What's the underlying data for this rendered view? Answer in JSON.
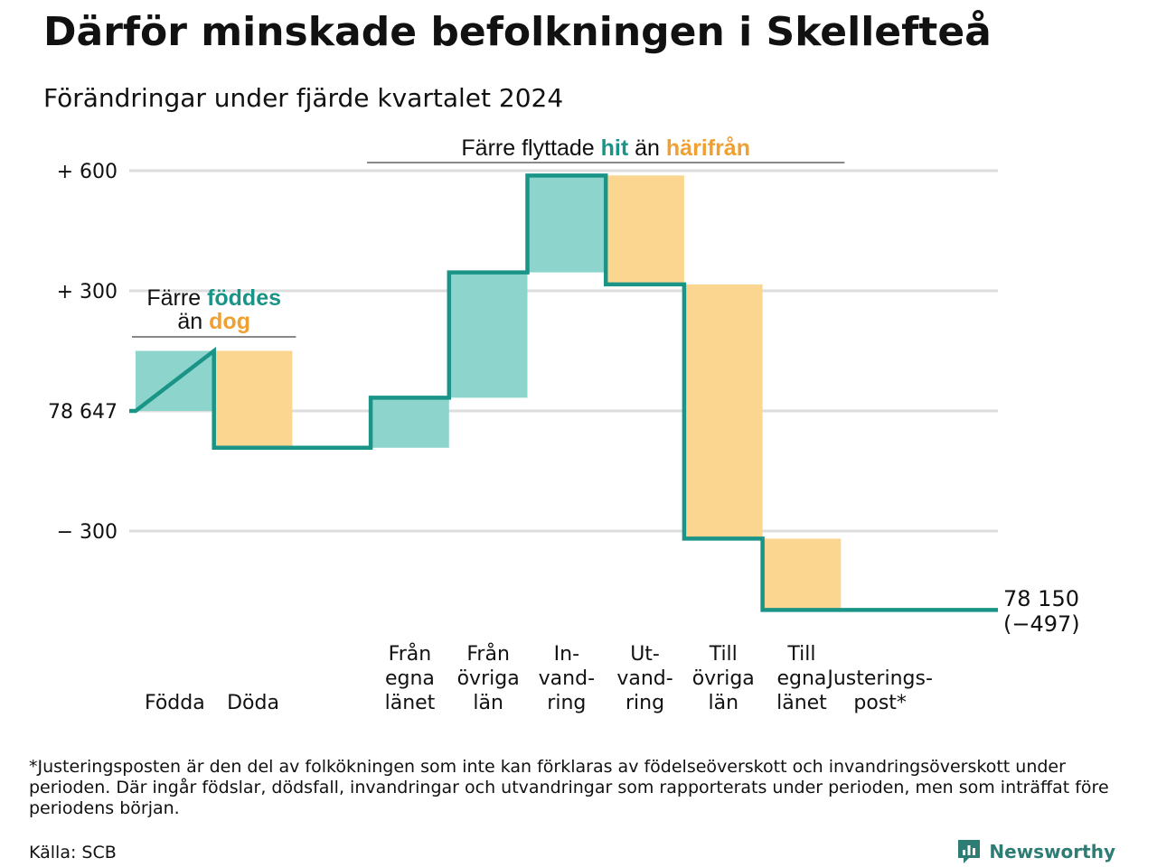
{
  "title": "Därför minskade befolkningen i Skellefteå",
  "subtitle": "Förändringar under fjärde kvartalet 2024",
  "footnote": "*Justeringsposten är den del av folkökningen som inte kan förklaras av födelseöverskott och invandringsöverskott under perioden. Där ingår födslar, dödsfall, invandringar och utvandringar som rapporterats under perioden, men som inträffat före periodens början.",
  "source": "Källa: SCB",
  "brand": "Newsworthy",
  "colors": {
    "increase": "#8dd5cc",
    "decrease": "#fad690",
    "line": "#1a9487",
    "grid": "#dddddd",
    "teal_text": "#1a9487",
    "orange_text": "#f0a030"
  },
  "annotations": {
    "births": {
      "line1": "Färre",
      "hl1": "föddes",
      "line2": "än",
      "hl2": "dog"
    },
    "migration": {
      "pre": "Färre flyttade",
      "hl1": "hit",
      "mid": "än",
      "hl2": "härifrån"
    }
  },
  "end_label": {
    "value": "78 150",
    "change": "(−497)"
  },
  "chart_data": {
    "type": "waterfall",
    "title": "Därför minskade befolkningen i Skellefteå",
    "subtitle": "Förändringar under fjärde kvartalet 2024",
    "start_value": 78647,
    "end_value": 78150,
    "total_change": -497,
    "y_ticks": [
      {
        "value": 600,
        "label": "+ 600"
      },
      {
        "value": 300,
        "label": "+ 300"
      },
      {
        "value": 0,
        "label": "78 647"
      },
      {
        "value": -300,
        "label": "− 300"
      }
    ],
    "ylim": [
      -480,
      640
    ],
    "grid": true,
    "steps": [
      {
        "label": [
          "Födda"
        ],
        "value": 150,
        "kind": "increase"
      },
      {
        "label": [
          "Döda"
        ],
        "value": -242,
        "kind": "decrease"
      },
      {
        "label": [],
        "value": 0,
        "kind": "blank"
      },
      {
        "label": [
          "Från",
          "egna",
          "länet"
        ],
        "value": 125,
        "kind": "increase"
      },
      {
        "label": [
          "Från",
          "övriga",
          "län"
        ],
        "value": 313,
        "kind": "increase"
      },
      {
        "label": [
          "In-",
          "vand-",
          "ring"
        ],
        "value": 242,
        "kind": "increase"
      },
      {
        "label": [
          "Ut-",
          "vand-",
          "ring"
        ],
        "value": -272,
        "kind": "decrease"
      },
      {
        "label": [
          "Till",
          "övriga",
          "län"
        ],
        "value": -635,
        "kind": "decrease"
      },
      {
        "label": [
          "Till",
          "egna",
          "länet"
        ],
        "value": -178,
        "kind": "decrease"
      },
      {
        "label": [
          "Justerings-",
          "post*"
        ],
        "value": 0,
        "kind": "adjustment"
      }
    ]
  }
}
